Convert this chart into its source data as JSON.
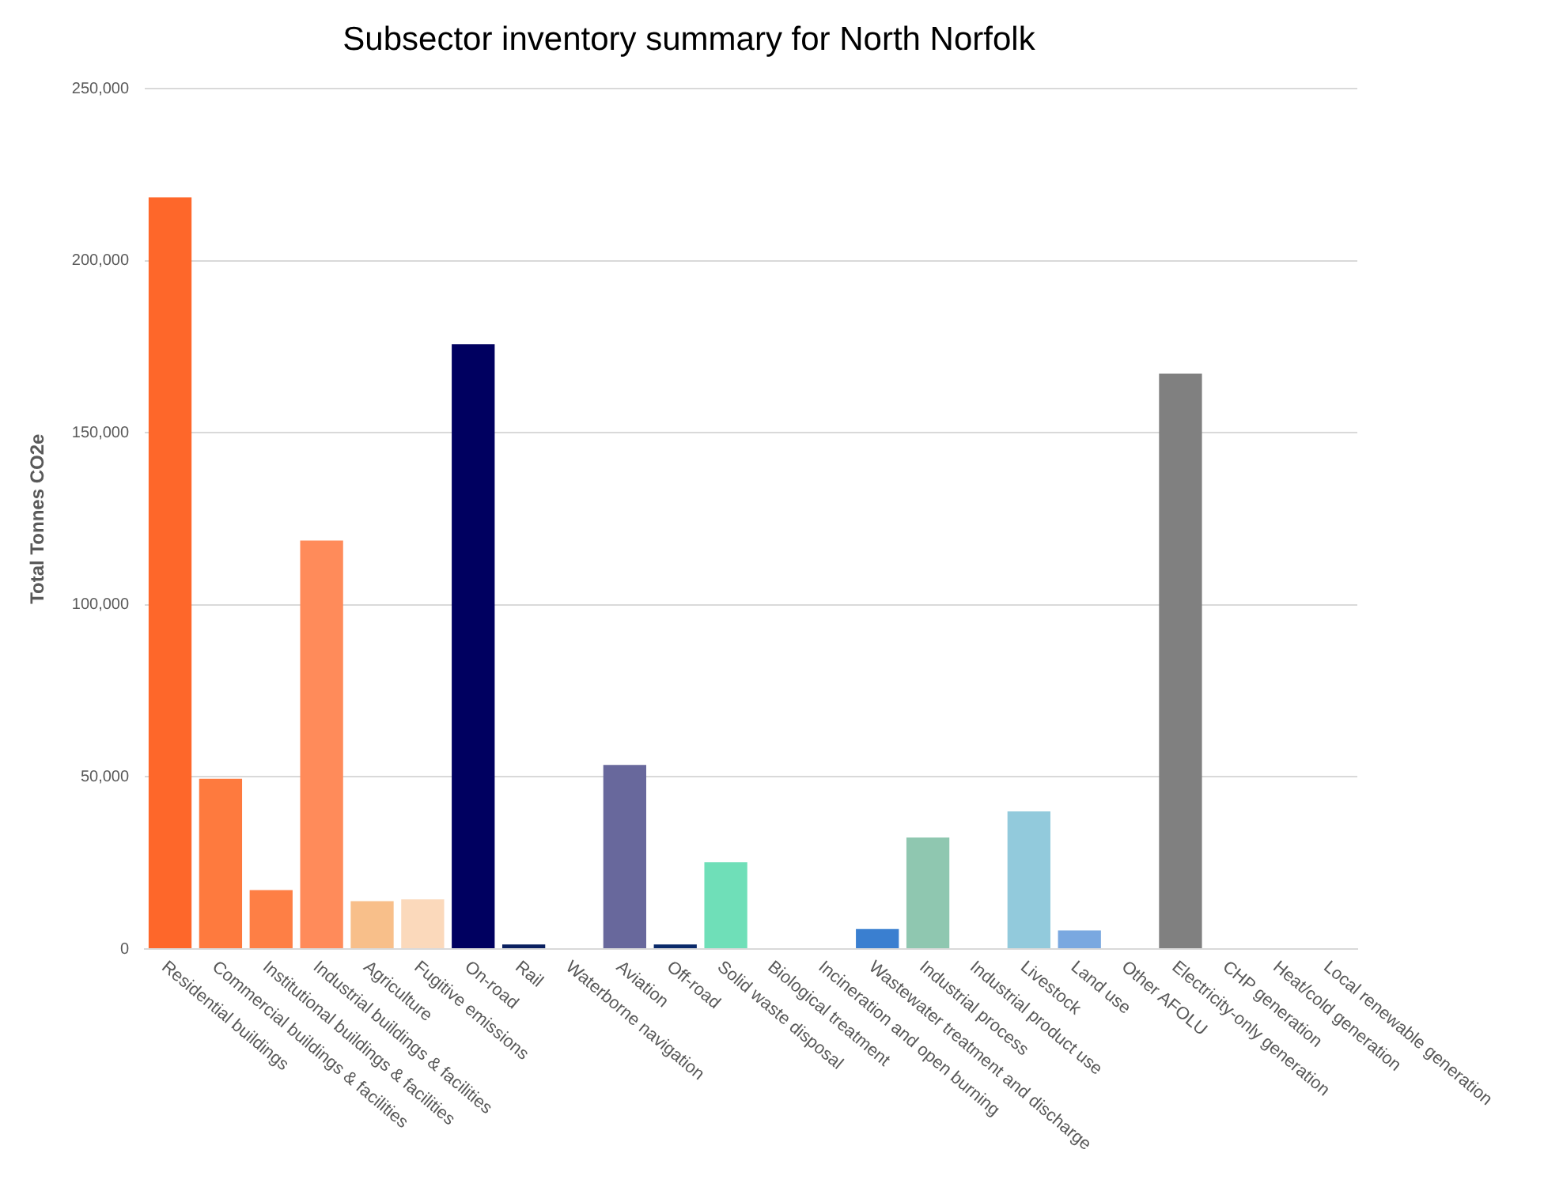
{
  "chart_data": {
    "type": "bar",
    "title": "Subsector inventory summary for North Norfolk",
    "ylabel": "Total Tonnes CO2e",
    "categories": [
      "Residential buildings",
      "Commercial buildings & facilities",
      "Institutional buildings & facilities",
      "Industrial buildings & facilities",
      "Agriculture",
      "Fugitive emissions",
      "On-road",
      "Rail",
      "Waterborne navigation",
      "Aviation",
      "Off-road",
      "Solid waste disposal",
      "Biological treatment",
      "Incineration and open burning",
      "Wastewater treatment and discharge",
      "Industrial process",
      "Industrial product use",
      "Livestock",
      "Land use",
      "Other AFOLU",
      "Electricity-only generation",
      "CHP generation",
      "Heat/cold generation",
      "Local renewable generation"
    ],
    "values": [
      218500,
      49500,
      17100,
      118700,
      13900,
      14400,
      175800,
      1300,
      0,
      53500,
      1300,
      25200,
      0,
      0,
      5800,
      32400,
      0,
      40000,
      5400,
      0,
      167200,
      0,
      0,
      0
    ],
    "colors": [
      "#fe672a",
      "#fe7a3e",
      "#fe7f45",
      "#ff8b5a",
      "#f8bf8a",
      "#fbd9bb",
      "#000060",
      "#0a2060",
      "#7a6aa0",
      "#68689c",
      "#0a2a6a",
      "#6fdfb8",
      "#4ab0a0",
      "#3a7fd0",
      "#3a7fd0",
      "#8fc7b0",
      "#8fc7b0",
      "#92cadc",
      "#7aa8e0",
      "#7aa8e0",
      "#808080",
      "#808080",
      "#808080",
      "#808080"
    ],
    "ylim": [
      0,
      250000
    ],
    "yticks": [
      {
        "value": 0,
        "label": "0"
      },
      {
        "value": 50000,
        "label": "50,000"
      },
      {
        "value": 100000,
        "label": "100,000"
      },
      {
        "value": 150000,
        "label": "150,000"
      },
      {
        "value": 200000,
        "label": "200,000"
      },
      {
        "value": 250000,
        "label": "250,000"
      }
    ],
    "grid": "y"
  }
}
